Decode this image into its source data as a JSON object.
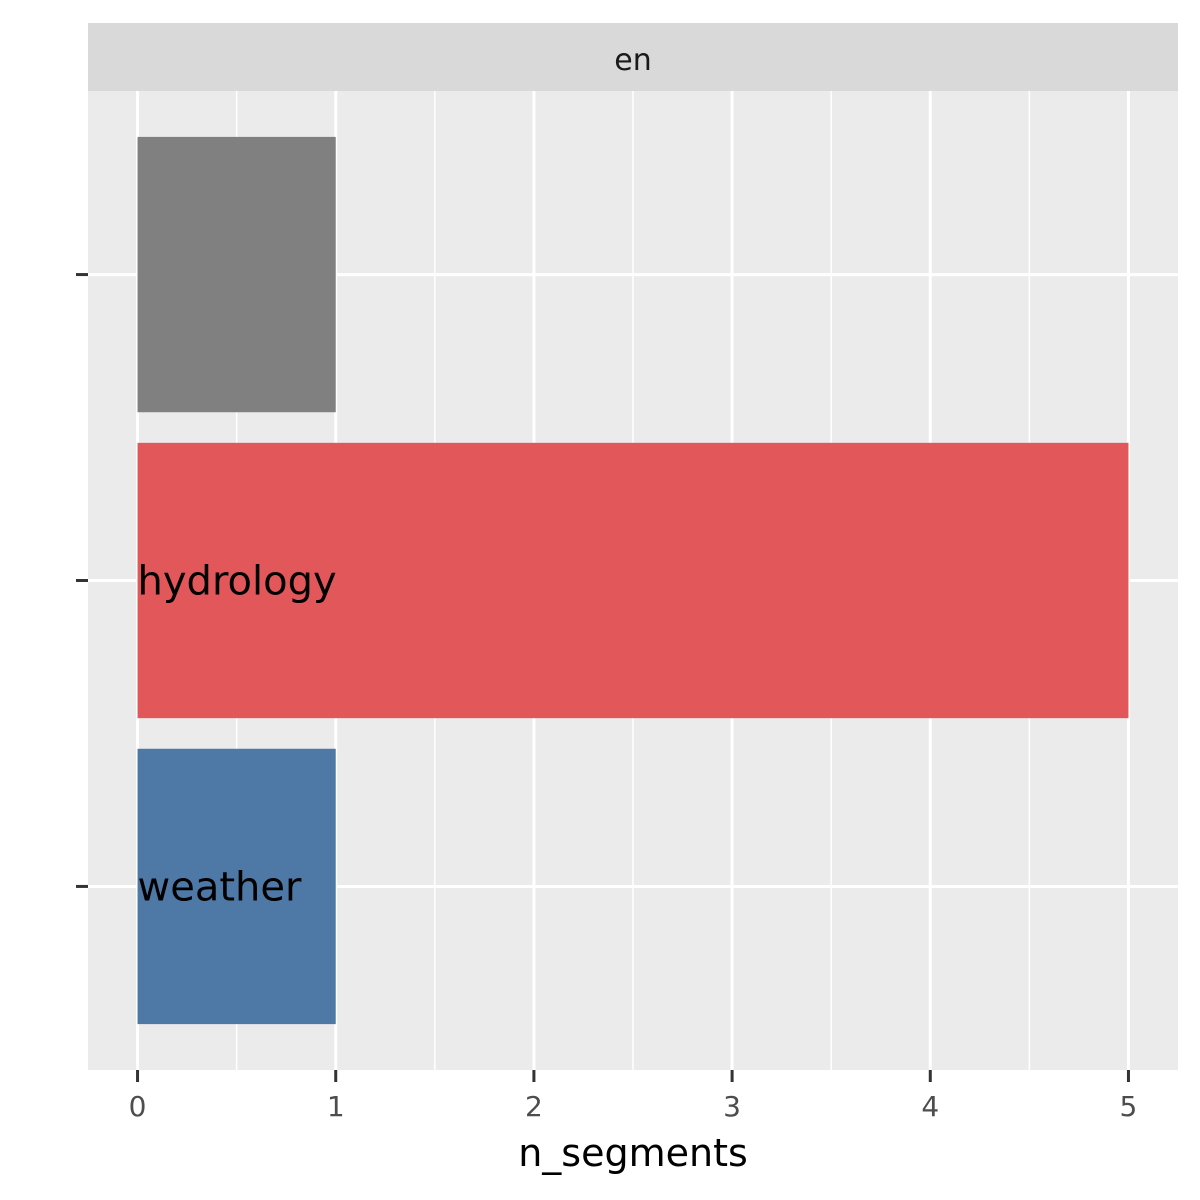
{
  "chart_data": {
    "type": "bar",
    "orientation": "horizontal",
    "facet_label": "en",
    "xlabel": "n_segments",
    "ylabel": "",
    "xlim": [
      -0.25,
      5.25
    ],
    "x_ticks": [
      0,
      1,
      2,
      3,
      4,
      5
    ],
    "grid": true,
    "legend": "none",
    "bars": [
      {
        "category": "",
        "label": "",
        "value": 1,
        "color": "#808080"
      },
      {
        "category": "hydrology",
        "label": "hydrology",
        "value": 5,
        "color": "#E1575A"
      },
      {
        "category": "weather",
        "label": "weather",
        "value": 1,
        "color": "#4E79A7"
      }
    ]
  }
}
